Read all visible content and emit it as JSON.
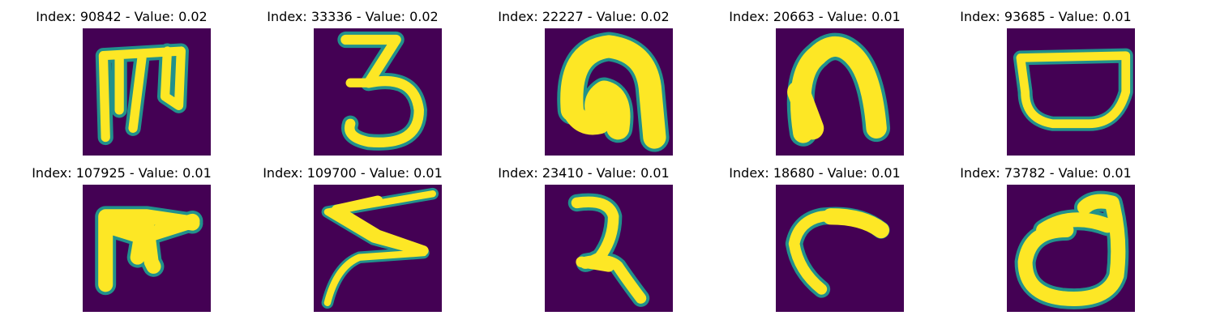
{
  "colors": {
    "background": "#440154",
    "ink": "#fde725",
    "edge_outer": "#3b528b",
    "edge_inner": "#21918c",
    "edge_warm": "#5ec962"
  },
  "panels": [
    {
      "title": "Index: 90842 - Value: 0.02",
      "glyph": "m-shape"
    },
    {
      "title": "Index: 33336 - Value: 0.02",
      "glyph": "three-shape"
    },
    {
      "title": "Index: 22227 - Value: 0.02",
      "glyph": "arch-curl-shape"
    },
    {
      "title": "Index: 20663 - Value: 0.01",
      "glyph": "arch-shape"
    },
    {
      "title": "Index: 93685 - Value: 0.01",
      "glyph": "bowl-shape"
    },
    {
      "title": "Index: 107925 - Value: 0.01",
      "glyph": "e-shape"
    },
    {
      "title": "Index: 109700 - Value: 0.01",
      "glyph": "zigzag-shape"
    },
    {
      "title": "Index: 23410 - Value: 0.01",
      "glyph": "two-shape"
    },
    {
      "title": "Index: 18680 - Value: 0.01",
      "glyph": "hook-shape"
    },
    {
      "title": "Index: 73782 - Value: 0.01",
      "glyph": "loop-shape"
    }
  ]
}
